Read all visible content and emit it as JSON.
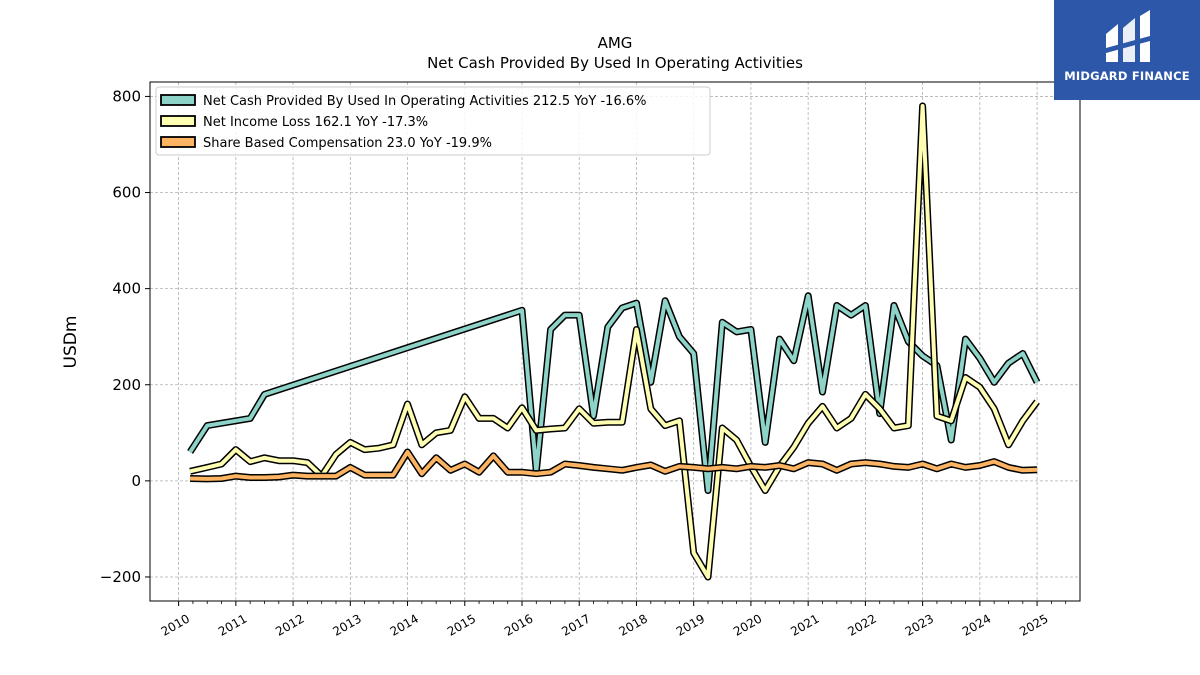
{
  "chart_data": {
    "type": "line",
    "title": "AMG",
    "subtitle": "Net Cash Provided By Used In Operating Activities",
    "xlabel": "",
    "ylabel": "USDm",
    "xlim": [
      2009.5,
      2025.75
    ],
    "ylim": [
      -250,
      830
    ],
    "yticks": [
      -200,
      0,
      200,
      400,
      600,
      800
    ],
    "ytick_labels": [
      "−200",
      "0",
      "200",
      "400",
      "600",
      "800"
    ],
    "xticks": [
      2010,
      2011,
      2012,
      2013,
      2014,
      2015,
      2016,
      2017,
      2018,
      2019,
      2020,
      2021,
      2022,
      2023,
      2024,
      2025
    ],
    "grid": true,
    "legend_position": "top-left",
    "series": [
      {
        "name": "Net Cash Provided By Used In Operating Activities",
        "legend_label": "Net Cash Provided By Used In Operating Activities  212.5 YoY -16.6%",
        "color": "#8dd3c7",
        "points": [
          [
            2010.2,
            60
          ],
          [
            2010.5,
            115
          ],
          [
            2011.0,
            125
          ],
          [
            2011.25,
            130
          ],
          [
            2011.5,
            180
          ],
          [
            2016.0,
            355
          ],
          [
            2016.25,
            20
          ],
          [
            2016.5,
            315
          ],
          [
            2016.75,
            345
          ],
          [
            2017.0,
            345
          ],
          [
            2017.25,
            135
          ],
          [
            2017.5,
            320
          ],
          [
            2017.75,
            360
          ],
          [
            2018.0,
            370
          ],
          [
            2018.25,
            205
          ],
          [
            2018.5,
            375
          ],
          [
            2018.75,
            300
          ],
          [
            2019.0,
            265
          ],
          [
            2019.25,
            -20
          ],
          [
            2019.5,
            330
          ],
          [
            2019.75,
            310
          ],
          [
            2020.0,
            315
          ],
          [
            2020.25,
            80
          ],
          [
            2020.5,
            295
          ],
          [
            2020.75,
            250
          ],
          [
            2021.0,
            385
          ],
          [
            2021.25,
            185
          ],
          [
            2021.5,
            365
          ],
          [
            2021.75,
            345
          ],
          [
            2022.0,
            365
          ],
          [
            2022.25,
            140
          ],
          [
            2022.5,
            365
          ],
          [
            2022.75,
            290
          ],
          [
            2023.0,
            260
          ],
          [
            2023.25,
            240
          ],
          [
            2023.5,
            85
          ],
          [
            2023.75,
            295
          ],
          [
            2024.0,
            255
          ],
          [
            2024.25,
            205
          ],
          [
            2024.5,
            245
          ],
          [
            2024.75,
            265
          ],
          [
            2025.0,
            205
          ]
        ]
      },
      {
        "name": "Net Income Loss",
        "legend_label": "Net Income Loss  162.1 YoY -17.3%",
        "color": "#ffffb3",
        "points": [
          [
            2010.2,
            20
          ],
          [
            2010.5,
            28
          ],
          [
            2010.75,
            35
          ],
          [
            2011.0,
            65
          ],
          [
            2011.25,
            40
          ],
          [
            2011.5,
            48
          ],
          [
            2011.75,
            42
          ],
          [
            2012.0,
            42
          ],
          [
            2012.25,
            38
          ],
          [
            2012.5,
            10
          ],
          [
            2012.75,
            55
          ],
          [
            2013.0,
            80
          ],
          [
            2013.25,
            65
          ],
          [
            2013.5,
            68
          ],
          [
            2013.75,
            75
          ],
          [
            2014.0,
            160
          ],
          [
            2014.25,
            75
          ],
          [
            2014.5,
            100
          ],
          [
            2014.75,
            105
          ],
          [
            2015.0,
            175
          ],
          [
            2015.25,
            130
          ],
          [
            2015.5,
            130
          ],
          [
            2015.75,
            110
          ],
          [
            2016.0,
            152
          ],
          [
            2016.25,
            105
          ],
          [
            2016.5,
            108
          ],
          [
            2016.75,
            110
          ],
          [
            2017.0,
            150
          ],
          [
            2017.25,
            120
          ],
          [
            2017.5,
            122
          ],
          [
            2017.75,
            122
          ],
          [
            2018.0,
            315
          ],
          [
            2018.25,
            150
          ],
          [
            2018.5,
            115
          ],
          [
            2018.75,
            125
          ],
          [
            2019.0,
            -150
          ],
          [
            2019.25,
            -200
          ],
          [
            2019.5,
            110
          ],
          [
            2019.75,
            85
          ],
          [
            2020.0,
            30
          ],
          [
            2020.25,
            -20
          ],
          [
            2020.5,
            30
          ],
          [
            2020.75,
            70
          ],
          [
            2021.0,
            120
          ],
          [
            2021.25,
            155
          ],
          [
            2021.5,
            110
          ],
          [
            2021.75,
            130
          ],
          [
            2022.0,
            180
          ],
          [
            2022.25,
            150
          ],
          [
            2022.5,
            110
          ],
          [
            2022.75,
            115
          ],
          [
            2023.0,
            780
          ],
          [
            2023.25,
            135
          ],
          [
            2023.5,
            125
          ],
          [
            2023.75,
            215
          ],
          [
            2024.0,
            195
          ],
          [
            2024.25,
            150
          ],
          [
            2024.5,
            75
          ],
          [
            2024.75,
            125
          ],
          [
            2025.0,
            165
          ]
        ]
      },
      {
        "name": "Share Based Compensation",
        "legend_label": "Share Based Compensation  23.0 YoY -19.9%",
        "color": "#fdb462",
        "points": [
          [
            2010.2,
            5
          ],
          [
            2010.5,
            4
          ],
          [
            2010.75,
            5
          ],
          [
            2011.0,
            10
          ],
          [
            2011.25,
            7
          ],
          [
            2011.5,
            7
          ],
          [
            2011.75,
            8
          ],
          [
            2012.0,
            12
          ],
          [
            2012.25,
            10
          ],
          [
            2012.5,
            10
          ],
          [
            2012.75,
            10
          ],
          [
            2013.0,
            28
          ],
          [
            2013.25,
            12
          ],
          [
            2013.5,
            12
          ],
          [
            2013.75,
            12
          ],
          [
            2014.0,
            60
          ],
          [
            2014.25,
            15
          ],
          [
            2014.5,
            48
          ],
          [
            2014.75,
            22
          ],
          [
            2015.0,
            35
          ],
          [
            2015.25,
            18
          ],
          [
            2015.5,
            52
          ],
          [
            2015.75,
            18
          ],
          [
            2016.0,
            18
          ],
          [
            2016.25,
            15
          ],
          [
            2016.5,
            18
          ],
          [
            2016.75,
            35
          ],
          [
            2017.0,
            32
          ],
          [
            2017.25,
            28
          ],
          [
            2017.5,
            25
          ],
          [
            2017.75,
            22
          ],
          [
            2018.0,
            28
          ],
          [
            2018.25,
            33
          ],
          [
            2018.5,
            20
          ],
          [
            2018.75,
            30
          ],
          [
            2019.0,
            28
          ],
          [
            2019.25,
            25
          ],
          [
            2019.5,
            28
          ],
          [
            2019.75,
            25
          ],
          [
            2020.0,
            30
          ],
          [
            2020.25,
            28
          ],
          [
            2020.5,
            32
          ],
          [
            2020.75,
            25
          ],
          [
            2021.0,
            38
          ],
          [
            2021.25,
            35
          ],
          [
            2021.5,
            22
          ],
          [
            2021.75,
            35
          ],
          [
            2022.0,
            38
          ],
          [
            2022.25,
            35
          ],
          [
            2022.5,
            30
          ],
          [
            2022.75,
            28
          ],
          [
            2023.0,
            35
          ],
          [
            2023.25,
            25
          ],
          [
            2023.5,
            35
          ],
          [
            2023.75,
            28
          ],
          [
            2024.0,
            32
          ],
          [
            2024.25,
            40
          ],
          [
            2024.5,
            28
          ],
          [
            2024.75,
            22
          ],
          [
            2025.0,
            23
          ]
        ]
      }
    ]
  },
  "logo": {
    "text": "MIDGARD FINANCE",
    "color": "#2d57a8"
  }
}
